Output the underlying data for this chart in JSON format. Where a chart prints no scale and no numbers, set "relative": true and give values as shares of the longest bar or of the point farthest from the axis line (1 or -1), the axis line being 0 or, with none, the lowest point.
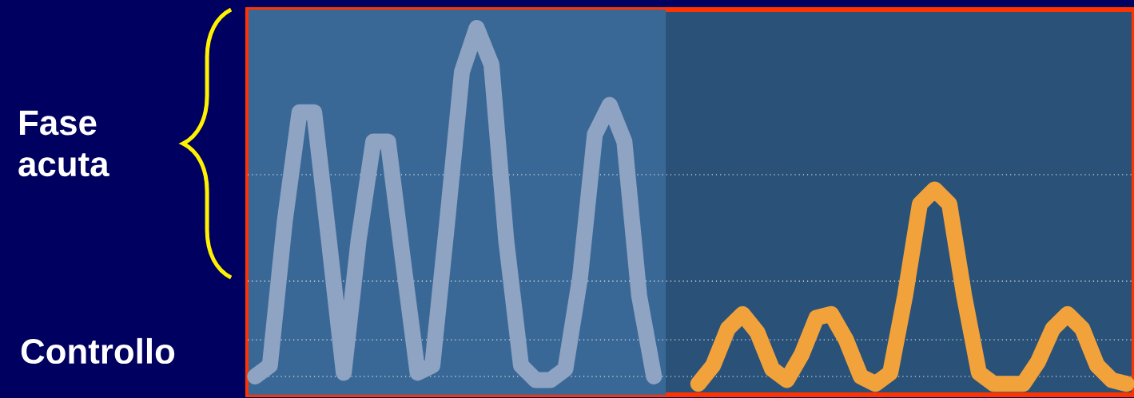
{
  "chart_data": {
    "type": "line",
    "relative": true,
    "categories": [
      null,
      null,
      null,
      null,
      null,
      null,
      null,
      null,
      null,
      null,
      null,
      null,
      null,
      null,
      null,
      null,
      null,
      null,
      null,
      null,
      null,
      null,
      null,
      null,
      null,
      null,
      null,
      null,
      null,
      null,
      null,
      null,
      null,
      null,
      null,
      null,
      null,
      null,
      null,
      null,
      null,
      null,
      null,
      null,
      null,
      null,
      null,
      null,
      null,
      null,
      null,
      null,
      null,
      null,
      null,
      null,
      null,
      null,
      null,
      null
    ],
    "series": [
      {
        "color": "#8fa3c3",
        "values": [
          0.05,
          0.08,
          0.47,
          0.77,
          0.77,
          0.42,
          0.06,
          0.42,
          0.69,
          0.69,
          0.37,
          0.06,
          0.08,
          0.47,
          0.88,
          1.0,
          0.9,
          0.42,
          0.08,
          0.04,
          0.04,
          0.07,
          0.32,
          0.71,
          0.79,
          0.69,
          0.27,
          0.05,
          null,
          null,
          null,
          null,
          null,
          null,
          null,
          null,
          null,
          null,
          null,
          null,
          null,
          null,
          null,
          null,
          null,
          null,
          null,
          null,
          null,
          null,
          null,
          null,
          null,
          null,
          null,
          null,
          null,
          null,
          null,
          null
        ]
      },
      {
        "color": "#f2a23a",
        "values": [
          null,
          null,
          null,
          null,
          null,
          null,
          null,
          null,
          null,
          null,
          null,
          null,
          null,
          null,
          null,
          null,
          null,
          null,
          null,
          null,
          null,
          null,
          null,
          null,
          null,
          null,
          null,
          null,
          null,
          null,
          0.03,
          0.08,
          0.18,
          0.22,
          0.17,
          0.07,
          0.04,
          0.11,
          0.21,
          0.22,
          0.15,
          0.05,
          0.03,
          0.06,
          0.27,
          0.52,
          0.56,
          0.52,
          0.27,
          0.06,
          0.03,
          0.03,
          0.03,
          0.09,
          0.18,
          0.22,
          0.18,
          0.08,
          0.04,
          0.03
        ]
      }
    ],
    "ref_lines": [
      {
        "axis": "y",
        "value": 0.6,
        "color": "#ffffff",
        "line_style": "dotted"
      },
      {
        "axis": "y",
        "value": 0.31,
        "color": "#ffffff",
        "line_style": "dotted"
      },
      {
        "axis": "y",
        "value": 0.15,
        "color": "#ffffff",
        "line_style": "dotted"
      },
      {
        "axis": "y",
        "value": 0.05,
        "color": "#ffffff",
        "line_style": "dotted"
      }
    ],
    "annotations": [
      "Fase acuta",
      "Controllo"
    ]
  }
}
